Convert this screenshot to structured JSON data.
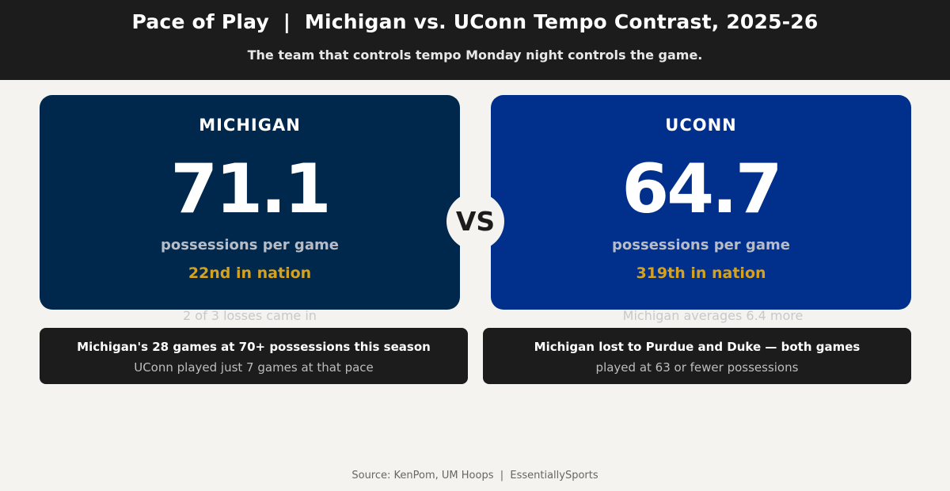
{
  "header": {
    "title": "Pace of Play  |  Michigan vs. UConn Tempo Contrast, 2025-26",
    "subtitle": "The team that controls tempo Monday night controls the game."
  },
  "teams": [
    {
      "name": "MICHIGAN",
      "value": "71.1",
      "unit": "possessions per game",
      "rank": "22nd in nation",
      "color": "#00284d"
    },
    {
      "name": "UCONN",
      "value": "64.7",
      "unit": "possessions per game",
      "rank": "319th in nation",
      "color": "#012f8c"
    }
  ],
  "vs_label": "VS",
  "notes": [
    {
      "faded": "2 of 3 losses came in",
      "main": "Michigan's 28 games at 70+ possessions this season",
      "sub": "UConn played just 7 games at that pace"
    },
    {
      "faded": "Michigan averages 6.4 more",
      "main": "Michigan lost to Purdue and Duke — both games",
      "sub": "played at 63 or fewer possessions"
    }
  ],
  "source": "Source: KenPom, UM Hoops  |  EssentiallySports",
  "colors": {
    "accent_gold": "#d4a21f",
    "dark": "#1c1c1c",
    "background": "#f4f3f0"
  }
}
